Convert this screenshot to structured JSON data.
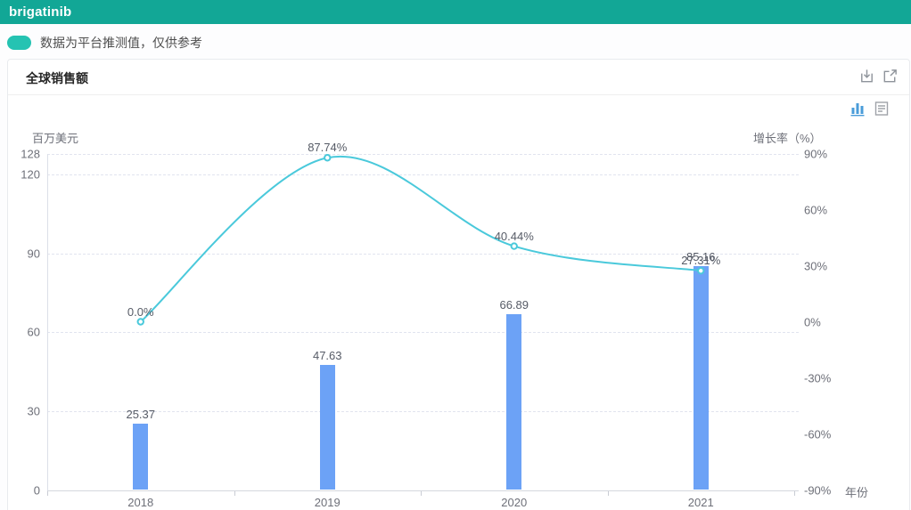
{
  "header": {
    "title": "brigatinib",
    "bg_color": "#12a796"
  },
  "legend": {
    "label": "数据为平台推测值，仅供参考",
    "swatch_color": "#25c3b2"
  },
  "panel": {
    "title": "全球销售额",
    "header_icons": [
      "download-icon",
      "external-link-icon"
    ],
    "toolbox_icons": [
      "bar-chart-icon",
      "data-view-icon"
    ]
  },
  "chart_data": {
    "type": "bar",
    "subtype": "bar+line combo",
    "categories": [
      "2018",
      "2019",
      "2020",
      "2021"
    ],
    "series": [
      {
        "name": "全球销售额",
        "type": "bar",
        "axis": "left",
        "color": "#6ca2f6",
        "values": [
          25.37,
          47.63,
          66.89,
          85.16
        ],
        "labels": [
          "25.37",
          "47.63",
          "66.89",
          "85.16"
        ]
      },
      {
        "name": "增长率",
        "type": "line",
        "axis": "right",
        "color": "#4ac9db",
        "values": [
          0.0,
          87.74,
          40.44,
          27.31
        ],
        "labels": [
          "0.0%",
          "87.74%",
          "40.44%",
          "27.31%"
        ]
      }
    ],
    "left_axis": {
      "name": "百万美元",
      "ticks": [
        0,
        30,
        60,
        90,
        120,
        128
      ],
      "min": 0,
      "max": 128
    },
    "right_axis": {
      "name": "增长率（%）",
      "ticks": [
        "90%",
        "60%",
        "30%",
        "0%",
        "-30%",
        "-60%",
        "-90%"
      ],
      "min": -90,
      "max": 90
    },
    "x_axis": {
      "name": "年份"
    },
    "grid": "horizontal dashed gridlines at left-axis ticks",
    "legend_position": "none"
  }
}
